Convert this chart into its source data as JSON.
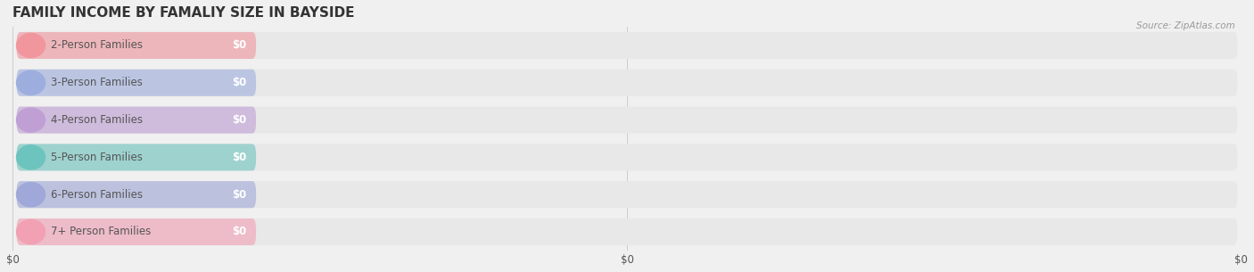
{
  "title": "FAMILY INCOME BY FAMALIY SIZE IN BAYSIDE",
  "source_text": "Source: ZipAtlas.com",
  "categories": [
    "2-Person Families",
    "3-Person Families",
    "4-Person Families",
    "5-Person Families",
    "6-Person Families",
    "7+ Person Families"
  ],
  "values": [
    0,
    0,
    0,
    0,
    0,
    0
  ],
  "bar_colors": [
    "#f2969e",
    "#9daede",
    "#bf9fd4",
    "#6dc4be",
    "#9fa8d8",
    "#f2a0b4"
  ],
  "circle_colors": [
    "#f2969e",
    "#9daede",
    "#bf9fd4",
    "#6dc4be",
    "#9fa8d8",
    "#f2a0b4"
  ],
  "bg_color": "#f0f0f0",
  "bar_bg_color": "#e8e8e8",
  "label_color": "#555555",
  "value_label_color": "#ffffff",
  "title_color": "#333333",
  "source_color": "#999999",
  "title_fontsize": 11,
  "label_fontsize": 8.5,
  "value_fontsize": 8.5,
  "source_fontsize": 7.5
}
